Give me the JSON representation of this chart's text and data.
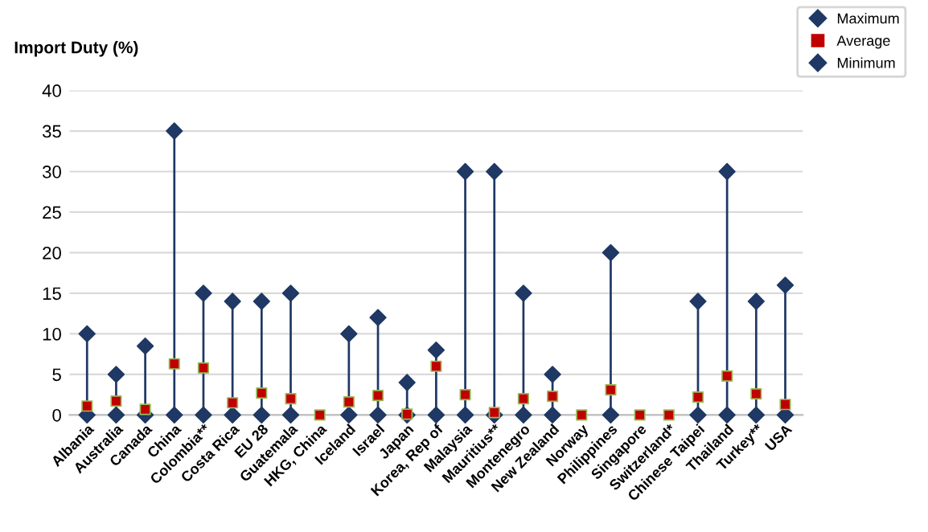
{
  "chart_data": {
    "type": "scatter",
    "ylabel": "Import Duty (%)",
    "categories": [
      "Albania",
      "Australia",
      "Canada",
      "China",
      "Colombia**",
      "Costa Rica",
      "EU 28",
      "Guatemala",
      "HKG, China",
      "Iceland",
      "Israel",
      "Japan",
      "Korea, Rep of",
      "Malaysia",
      "Mauritius**",
      "Montenegro",
      "New Zealand",
      "Norway",
      "Philippines",
      "Singapore",
      "Switzerland*",
      "Chinese Taipei",
      "Thailand",
      "Turkey**",
      "USA"
    ],
    "series": [
      {
        "name": "Maximum",
        "type": "lollipop",
        "color": "#1f3864",
        "marker": "diamond",
        "values": [
          10,
          5,
          8.5,
          35,
          15,
          14,
          14,
          15,
          null,
          10,
          12,
          4,
          8,
          30,
          30,
          15,
          5,
          null,
          20,
          null,
          null,
          14,
          30,
          14,
          16
        ]
      },
      {
        "name": "Average",
        "color": "#c00000",
        "marker": "square",
        "values": [
          1.1,
          1.7,
          0.7,
          6.3,
          5.8,
          1.5,
          2.7,
          2.0,
          0,
          1.6,
          2.4,
          0.1,
          6.0,
          2.5,
          0.3,
          2.0,
          2.3,
          0,
          3.1,
          0,
          0,
          2.2,
          4.8,
          2.6,
          1.3
        ]
      },
      {
        "name": "Minimum",
        "color": "#1f3864",
        "marker": "diamond",
        "values": [
          0,
          0,
          0,
          0,
          0,
          0,
          0,
          0,
          null,
          0,
          0,
          0,
          0,
          0,
          0,
          0,
          0,
          null,
          0,
          null,
          null,
          0,
          0,
          0,
          0
        ]
      }
    ],
    "ylim": [
      0,
      40
    ],
    "yticks": [
      0,
      5,
      10,
      15,
      20,
      25,
      30,
      35,
      40
    ],
    "grid": "y",
    "legend": "top right"
  }
}
